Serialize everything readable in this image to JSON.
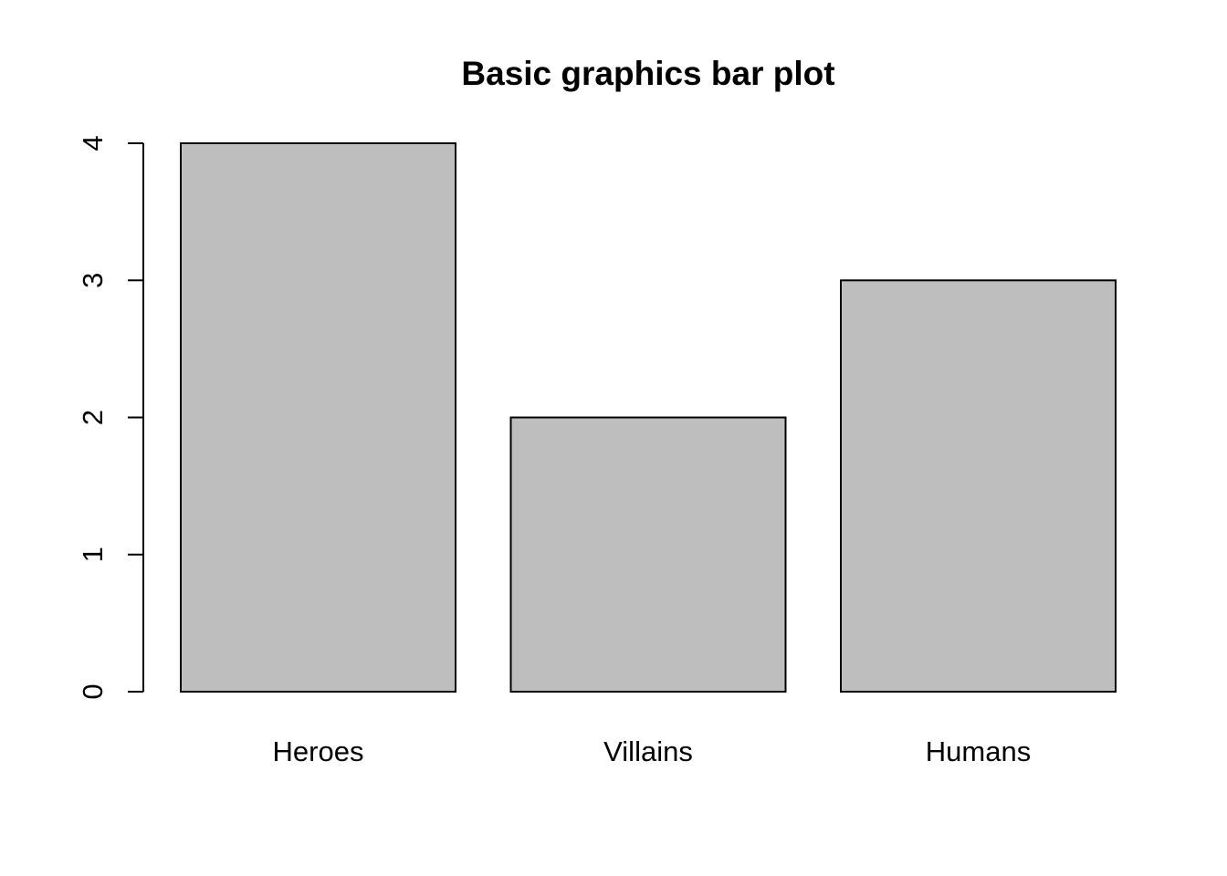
{
  "chart_data": {
    "type": "bar",
    "title": "Basic graphics bar plot",
    "xlabel": "",
    "ylabel": "",
    "categories": [
      "Heroes",
      "Villains",
      "Humans"
    ],
    "values": [
      4,
      2,
      3
    ],
    "ylim": [
      0,
      4
    ],
    "yticks": [
      0,
      1,
      2,
      3,
      4
    ],
    "ytick_labels": [
      "0",
      "1",
      "2",
      "3",
      "4"
    ],
    "bar_color": "#bebebe",
    "grid": false,
    "legend": "none"
  }
}
